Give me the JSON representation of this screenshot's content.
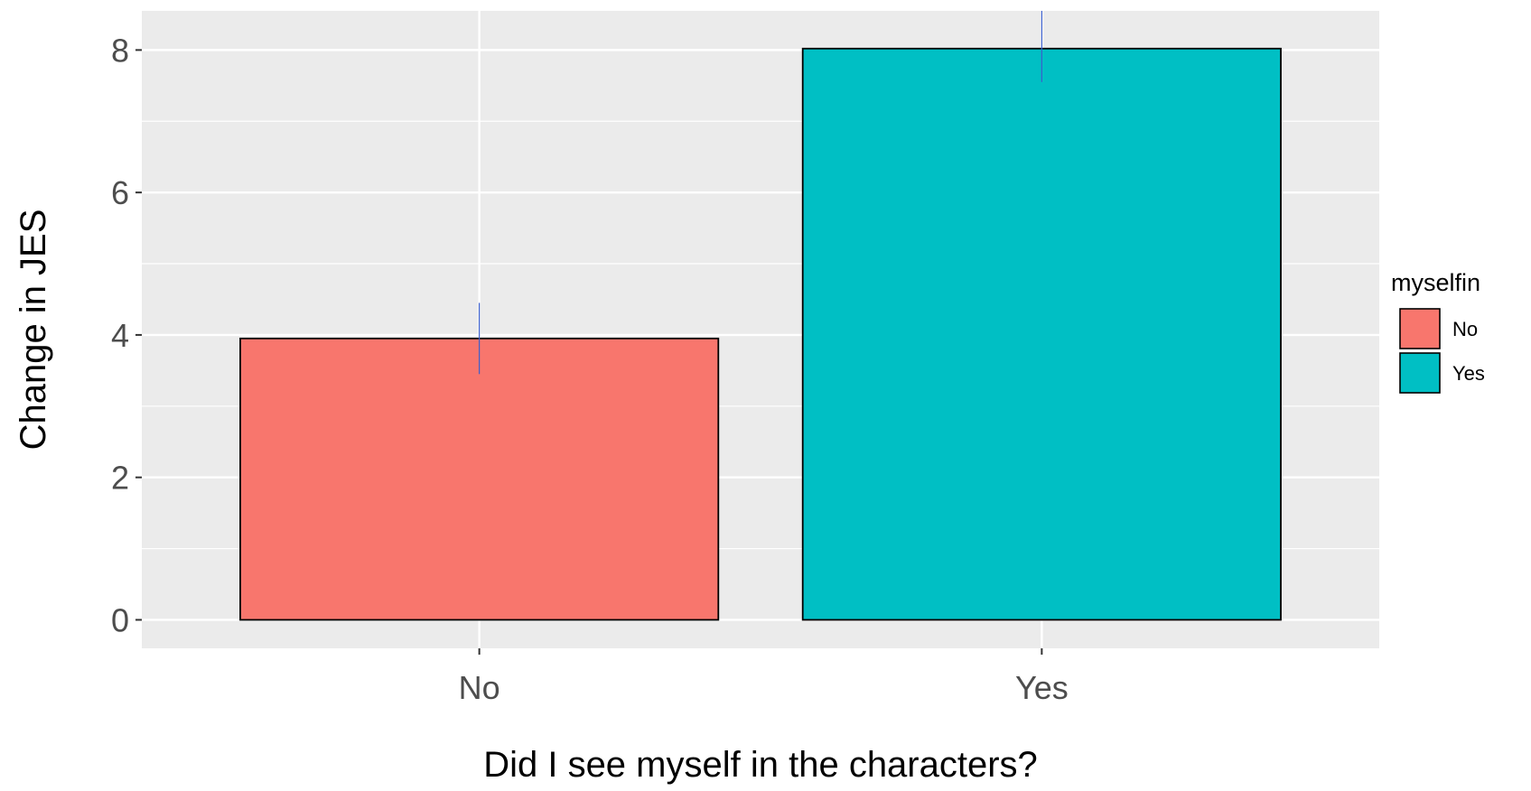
{
  "chart_data": {
    "type": "bar",
    "categories": [
      "No",
      "Yes"
    ],
    "values": [
      3.95,
      8.02
    ],
    "error_bars": [
      {
        "low": 3.45,
        "high": 4.45
      },
      {
        "low": 7.55,
        "high": 8.55
      }
    ],
    "title": "",
    "xlabel": "Did I see myself in the characters?",
    "ylabel": "Change in JES",
    "ylim": [
      -0.4,
      8.55
    ],
    "yticks": [
      0,
      2,
      4,
      6,
      8
    ],
    "grid": true,
    "legend": {
      "title": "myselfin",
      "position": "right",
      "entries": [
        {
          "label": "No",
          "color": "#F8766D"
        },
        {
          "label": "Yes",
          "color": "#00BFC4"
        }
      ]
    },
    "colors": {
      "panel": "#EBEBEB",
      "grid": "#FFFFFF",
      "bar_outline": "#000000",
      "error_bar": "#3A5FCD"
    }
  }
}
